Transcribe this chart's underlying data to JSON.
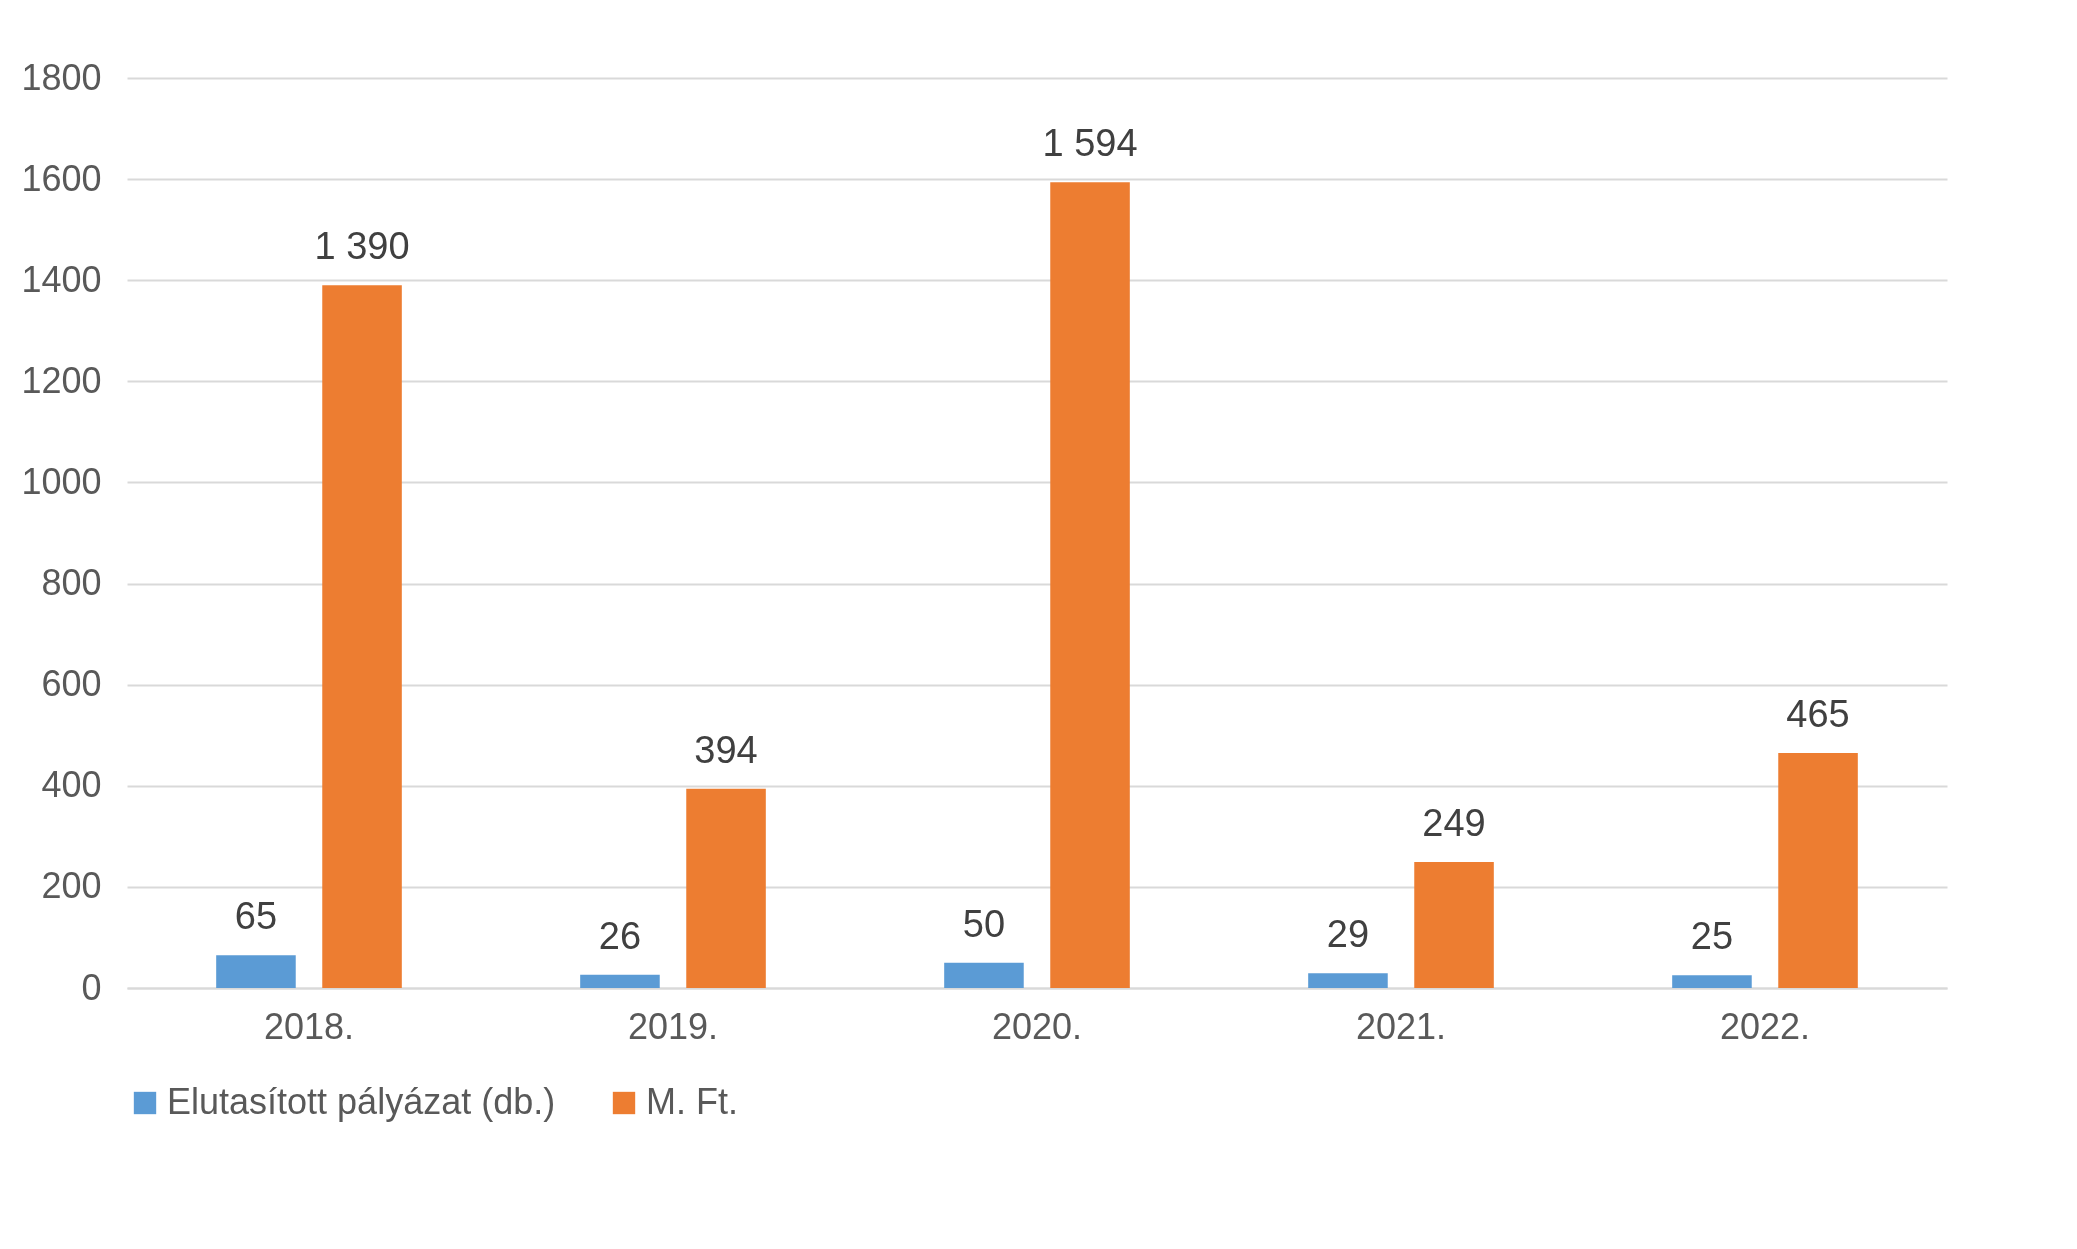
{
  "chart_data": {
    "type": "bar",
    "categories": [
      "2018.",
      "2019.",
      "2020.",
      "2021.",
      "2022."
    ],
    "series": [
      {
        "name": "Elutasított pályázat (db.)",
        "color": "#5b9bd5",
        "values": [
          65,
          26,
          50,
          29,
          25
        ],
        "value_labels": [
          "65",
          "26",
          "50",
          "29",
          "25"
        ]
      },
      {
        "name": "M. Ft.",
        "color": "#ed7d31",
        "values": [
          1390,
          394,
          1594,
          249,
          465
        ],
        "value_labels": [
          "1 390",
          "394",
          "1 594",
          "249",
          "465"
        ]
      }
    ],
    "ylim": [
      0,
      1800
    ],
    "yticks": [
      0,
      200,
      400,
      600,
      800,
      1000,
      1200,
      1400,
      1600,
      1800
    ],
    "grid": "y",
    "legend": "bottom"
  }
}
